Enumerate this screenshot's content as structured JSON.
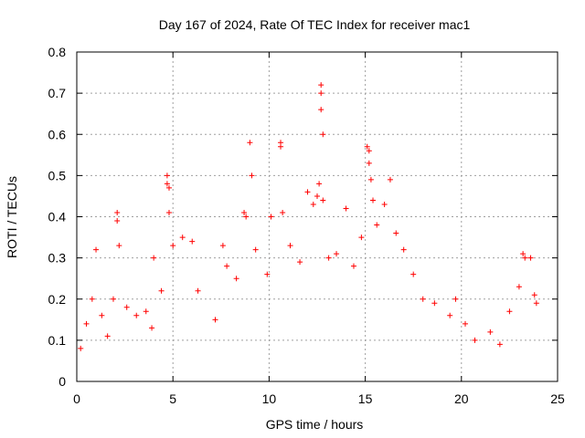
{
  "chart_data": {
    "type": "scatter",
    "title": "Day 167 of 2024, Rate Of TEC Index for receiver mac1",
    "xlabel": "GPS time / hours",
    "ylabel": "ROTI / TECUs",
    "xlim": [
      0,
      25
    ],
    "ylim": [
      0,
      0.8
    ],
    "xticks": [
      "0",
      "5",
      "10",
      "15",
      "20",
      "25"
    ],
    "yticks": [
      "0",
      "0.1",
      "0.2",
      "0.3",
      "0.4",
      "0.5",
      "0.6",
      "0.7",
      "0.8"
    ],
    "grid": true,
    "marker": "+",
    "color": "#ff0000",
    "series": [
      {
        "points": [
          [
            0.2,
            0.08
          ],
          [
            0.5,
            0.14
          ],
          [
            0.8,
            0.2
          ],
          [
            1.0,
            0.32
          ],
          [
            1.3,
            0.16
          ],
          [
            1.6,
            0.11
          ],
          [
            1.9,
            0.2
          ],
          [
            2.1,
            0.41
          ],
          [
            2.1,
            0.39
          ],
          [
            2.2,
            0.33
          ],
          [
            2.6,
            0.18
          ],
          [
            3.1,
            0.16
          ],
          [
            3.6,
            0.17
          ],
          [
            3.9,
            0.13
          ],
          [
            4.0,
            0.3
          ],
          [
            4.4,
            0.22
          ],
          [
            4.7,
            0.5
          ],
          [
            4.7,
            0.48
          ],
          [
            4.8,
            0.47
          ],
          [
            4.8,
            0.41
          ],
          [
            5.0,
            0.33
          ],
          [
            5.5,
            0.35
          ],
          [
            6.0,
            0.34
          ],
          [
            6.3,
            0.22
          ],
          [
            7.2,
            0.15
          ],
          [
            7.6,
            0.33
          ],
          [
            7.8,
            0.28
          ],
          [
            8.3,
            0.25
          ],
          [
            8.7,
            0.41
          ],
          [
            8.8,
            0.4
          ],
          [
            9.0,
            0.58
          ],
          [
            9.1,
            0.5
          ],
          [
            9.3,
            0.32
          ],
          [
            9.9,
            0.26
          ],
          [
            10.1,
            0.4
          ],
          [
            10.6,
            0.58
          ],
          [
            10.6,
            0.57
          ],
          [
            10.7,
            0.41
          ],
          [
            11.1,
            0.33
          ],
          [
            11.6,
            0.29
          ],
          [
            12.0,
            0.46
          ],
          [
            12.3,
            0.43
          ],
          [
            12.5,
            0.45
          ],
          [
            12.6,
            0.48
          ],
          [
            12.7,
            0.72
          ],
          [
            12.7,
            0.7
          ],
          [
            12.7,
            0.66
          ],
          [
            12.8,
            0.6
          ],
          [
            12.8,
            0.44
          ],
          [
            13.1,
            0.3
          ],
          [
            13.5,
            0.31
          ],
          [
            14.0,
            0.42
          ],
          [
            14.4,
            0.28
          ],
          [
            14.8,
            0.35
          ],
          [
            15.1,
            0.57
          ],
          [
            15.2,
            0.56
          ],
          [
            15.2,
            0.53
          ],
          [
            15.3,
            0.49
          ],
          [
            15.4,
            0.44
          ],
          [
            15.6,
            0.38
          ],
          [
            16.0,
            0.43
          ],
          [
            16.3,
            0.49
          ],
          [
            16.6,
            0.36
          ],
          [
            17.0,
            0.32
          ],
          [
            17.5,
            0.26
          ],
          [
            18.0,
            0.2
          ],
          [
            18.6,
            0.19
          ],
          [
            19.4,
            0.16
          ],
          [
            19.7,
            0.2
          ],
          [
            20.2,
            0.14
          ],
          [
            20.7,
            0.1
          ],
          [
            21.5,
            0.12
          ],
          [
            22.0,
            0.09
          ],
          [
            22.5,
            0.17
          ],
          [
            23.0,
            0.23
          ],
          [
            23.2,
            0.31
          ],
          [
            23.3,
            0.3
          ],
          [
            23.6,
            0.3
          ],
          [
            23.8,
            0.21
          ],
          [
            23.9,
            0.19
          ]
        ]
      }
    ]
  }
}
